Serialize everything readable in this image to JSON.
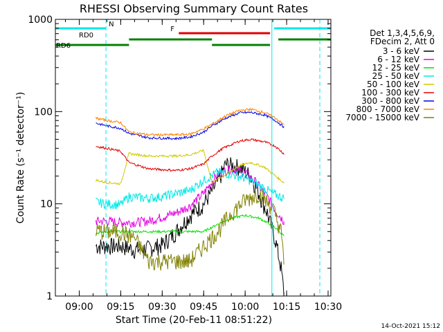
{
  "chart_data": {
    "type": "line",
    "title": "RHESSI Observing Summary Count Rates",
    "xlabel": "Start Time (20-Feb-11 08:51:22)",
    "ylabel": "Count Rate (s⁻¹ detector⁻¹)",
    "yscale": "log",
    "ylim": [
      1,
      1000
    ],
    "xlim": [
      "08:51:22",
      "10:31:00"
    ],
    "x_ticks": [
      "09:00",
      "09:15",
      "09:30",
      "09:45",
      "10:00",
      "10:15",
      "10:30"
    ],
    "y_ticks": [
      "1",
      "10",
      "100",
      "1000"
    ],
    "legend_position": "right",
    "legend_header": [
      "Det 1,3,4,5,6,9,",
      "FDecim 2, Att 0"
    ],
    "series": [
      {
        "name": "3 - 6 keV",
        "color": "#000000",
        "points": [
          [
            "09:06",
            3.5
          ],
          [
            "09:10",
            3.5
          ],
          [
            "09:15",
            3.5
          ],
          [
            "09:20",
            3.2
          ],
          [
            "09:25",
            3.3
          ],
          [
            "09:30",
            3.6
          ],
          [
            "09:35",
            5
          ],
          [
            "09:40",
            7.5
          ],
          [
            "09:45",
            10
          ],
          [
            "09:50",
            17
          ],
          [
            "09:53",
            27
          ],
          [
            "09:58",
            25
          ],
          [
            "10:02",
            20
          ],
          [
            "10:05",
            13
          ],
          [
            "10:08",
            8
          ],
          [
            "10:11",
            4
          ],
          [
            "10:13",
            2
          ],
          [
            "10:14",
            1.1
          ]
        ]
      },
      {
        "name": "6 - 12 keV",
        "color": "#e000e0",
        "points": [
          [
            "09:06",
            6.5
          ],
          [
            "09:10",
            6.5
          ],
          [
            "09:15",
            6.3
          ],
          [
            "09:20",
            6.3
          ],
          [
            "09:25",
            6.5
          ],
          [
            "09:30",
            7.2
          ],
          [
            "09:35",
            8
          ],
          [
            "09:40",
            9.5
          ],
          [
            "09:45",
            13
          ],
          [
            "09:50",
            21
          ],
          [
            "09:55",
            24
          ],
          [
            "10:00",
            22
          ],
          [
            "10:04",
            17
          ],
          [
            "10:08",
            12
          ],
          [
            "10:11",
            8.5
          ],
          [
            "10:14",
            6.5
          ]
        ]
      },
      {
        "name": "12 - 25 keV",
        "color": "#00e000",
        "points": [
          [
            "09:06",
            4.8
          ],
          [
            "09:10",
            5
          ],
          [
            "09:15",
            5
          ],
          [
            "09:20",
            5
          ],
          [
            "09:25",
            5
          ],
          [
            "09:30",
            5
          ],
          [
            "09:35",
            5
          ],
          [
            "09:40",
            5
          ],
          [
            "09:45",
            5
          ],
          [
            "09:50",
            6
          ],
          [
            "09:55",
            7
          ],
          [
            "10:00",
            7.5
          ],
          [
            "10:05",
            7
          ],
          [
            "10:10",
            5.8
          ],
          [
            "10:14",
            4.5
          ]
        ]
      },
      {
        "name": "25 - 50 keV",
        "color": "#00e8e8",
        "points": [
          [
            "09:06",
            10.5
          ],
          [
            "09:10",
            10
          ],
          [
            "09:15",
            9.8
          ],
          [
            "09:18",
            12
          ],
          [
            "09:25",
            11.5
          ],
          [
            "09:30",
            12
          ],
          [
            "09:35",
            13
          ],
          [
            "09:40",
            14
          ],
          [
            "09:45",
            18
          ],
          [
            "09:50",
            22
          ],
          [
            "09:55",
            21
          ],
          [
            "10:00",
            19
          ],
          [
            "10:05",
            16
          ],
          [
            "10:10",
            13
          ],
          [
            "10:14",
            11.5
          ]
        ]
      },
      {
        "name": "50 - 100 keV",
        "color": "#d0c800",
        "points": [
          [
            "09:06",
            18
          ],
          [
            "09:10",
            17
          ],
          [
            "09:15",
            16.5
          ],
          [
            "09:18",
            35
          ],
          [
            "09:25",
            33
          ],
          [
            "09:35",
            33
          ],
          [
            "09:40",
            34
          ],
          [
            "09:45",
            38
          ],
          [
            "09:48",
            17
          ],
          [
            "09:52",
            20
          ],
          [
            "09:58",
            26
          ],
          [
            "10:02",
            28
          ],
          [
            "10:07",
            25
          ],
          [
            "10:11",
            20
          ],
          [
            "10:14",
            17
          ]
        ]
      },
      {
        "name": "100 - 300 keV",
        "color": "#e00000",
        "points": [
          [
            "09:06",
            42
          ],
          [
            "09:10",
            40
          ],
          [
            "09:15",
            37
          ],
          [
            "09:18",
            28
          ],
          [
            "09:25",
            24
          ],
          [
            "09:35",
            23
          ],
          [
            "09:40",
            24
          ],
          [
            "09:45",
            27
          ],
          [
            "09:48",
            33
          ],
          [
            "09:52",
            40
          ],
          [
            "09:58",
            48
          ],
          [
            "10:02",
            50
          ],
          [
            "10:07",
            47
          ],
          [
            "10:11",
            42
          ],
          [
            "10:14",
            35
          ]
        ]
      },
      {
        "name": "300 - 800 keV",
        "color": "#0000e0",
        "points": [
          [
            "09:06",
            75
          ],
          [
            "09:10",
            70
          ],
          [
            "09:15",
            66
          ],
          [
            "09:18",
            58
          ],
          [
            "09:25",
            52
          ],
          [
            "09:35",
            51
          ],
          [
            "09:40",
            53
          ],
          [
            "09:45",
            60
          ],
          [
            "09:48",
            70
          ],
          [
            "09:53",
            85
          ],
          [
            "09:58",
            97
          ],
          [
            "10:02",
            98
          ],
          [
            "10:07",
            92
          ],
          [
            "10:11",
            80
          ],
          [
            "10:14",
            68
          ]
        ]
      },
      {
        "name": "800 - 7000 keV",
        "color": "#ff8000",
        "points": [
          [
            "09:06",
            85
          ],
          [
            "09:10",
            80
          ],
          [
            "09:15",
            76
          ],
          [
            "09:18",
            60
          ],
          [
            "09:25",
            56
          ],
          [
            "09:35",
            56
          ],
          [
            "09:40",
            57
          ],
          [
            "09:45",
            65
          ],
          [
            "09:48",
            73
          ],
          [
            "09:53",
            90
          ],
          [
            "09:58",
            103
          ],
          [
            "10:02",
            106
          ],
          [
            "10:07",
            98
          ],
          [
            "10:11",
            85
          ],
          [
            "10:14",
            72
          ]
        ]
      },
      {
        "name": "7000 - 15000 keV",
        "color": "#808000",
        "points": [
          [
            "09:06",
            5.2
          ],
          [
            "09:10",
            5
          ],
          [
            "09:15",
            5
          ],
          [
            "09:20",
            4.3
          ],
          [
            "09:25",
            2.4
          ],
          [
            "09:30",
            2.4
          ],
          [
            "09:35",
            2.4
          ],
          [
            "09:40",
            2.4
          ],
          [
            "09:45",
            3.5
          ],
          [
            "09:50",
            5
          ],
          [
            "09:55",
            8
          ],
          [
            "10:00",
            11
          ],
          [
            "10:05",
            13
          ],
          [
            "10:10",
            9
          ],
          [
            "10:13",
            5
          ],
          [
            "10:14",
            2.3
          ]
        ]
      }
    ],
    "flag_bars": [
      {
        "label": "N",
        "color": "#00e8e8",
        "level": "top",
        "segments": [
          [
            "08:51:22",
            "09:09:40"
          ],
          [
            "10:10:30",
            "10:31:00"
          ]
        ]
      },
      {
        "label": "F",
        "color": "#e00000",
        "level": "upper",
        "segments": [
          [
            "09:36",
            "10:09"
          ]
        ]
      },
      {
        "label": "RD0",
        "color": "#008000",
        "level": "middle",
        "segments": [
          [
            "09:18",
            "09:48"
          ],
          [
            "10:12",
            "10:31"
          ]
        ]
      },
      {
        "label": "RD6",
        "color": "#008000",
        "level": "lower",
        "segments": [
          [
            "08:51:22",
            "09:18"
          ],
          [
            "09:48",
            "10:09"
          ]
        ]
      }
    ],
    "vertical_lines": {
      "solid_cyan": [
        "08:51:22",
        "10:09:40"
      ],
      "dashed_cyan": [
        "09:09:40",
        "10:27:00"
      ]
    }
  },
  "footer": {
    "timestamp": "14-Oct-2021 15:12"
  }
}
